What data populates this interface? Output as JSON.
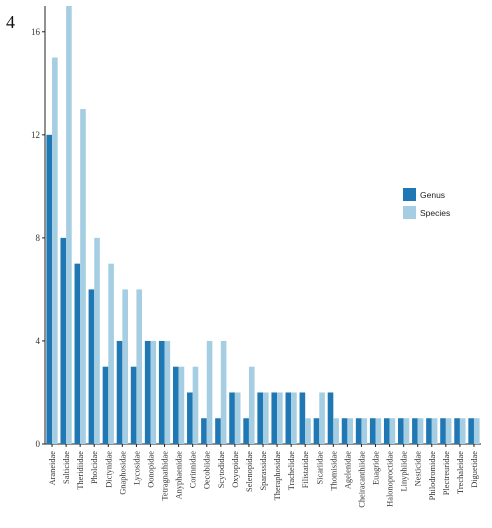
{
  "panel_label": "4",
  "chart_data": {
    "type": "bar",
    "title": "",
    "xlabel": "",
    "ylabel": "",
    "ylim": [
      0,
      17
    ],
    "yticks": [
      0,
      4,
      8,
      12,
      16
    ],
    "grid": false,
    "legend_position": "right",
    "categories": [
      "Araneidae",
      "Salticidae",
      "Theridiidae",
      "Pholcidae",
      "Dictynidae",
      "Gnaphosidae",
      "Lycosidae",
      "Oonopidae",
      "Tetragnathidae",
      "Anyphaenidae",
      "Corinnidae",
      "Oecobiidae",
      "Scytodidae",
      "Oxyopidae",
      "Selenopidae",
      "Sparassidae",
      "Theraphosidae",
      "Trachelidae",
      "Filistatidae",
      "Sicariidae",
      "Thomisidae",
      "Agelenidae",
      "Cheiracanthiidae",
      "Euagridae",
      "Halonoproctidae",
      "Linyphiidae",
      "Nesticidae",
      "Philodromidae",
      "Plectreuridae",
      "Trechaleidae",
      "Diguetidae"
    ],
    "series": [
      {
        "name": "Genus",
        "color": "#1f78b4",
        "values": [
          12,
          8,
          7,
          6,
          3,
          4,
          3,
          4,
          4,
          3,
          2,
          1,
          1,
          2,
          1,
          2,
          2,
          2,
          2,
          1,
          2,
          1,
          1,
          1,
          1,
          1,
          1,
          1,
          1,
          1,
          1
        ]
      },
      {
        "name": "Species",
        "color": "#a6cee3",
        "values": [
          15,
          17,
          13,
          8,
          7,
          6,
          6,
          4,
          4,
          3,
          3,
          4,
          4,
          2,
          3,
          2,
          2,
          2,
          1,
          2,
          1,
          1,
          1,
          1,
          1,
          1,
          1,
          1,
          1,
          1,
          1
        ]
      }
    ]
  }
}
